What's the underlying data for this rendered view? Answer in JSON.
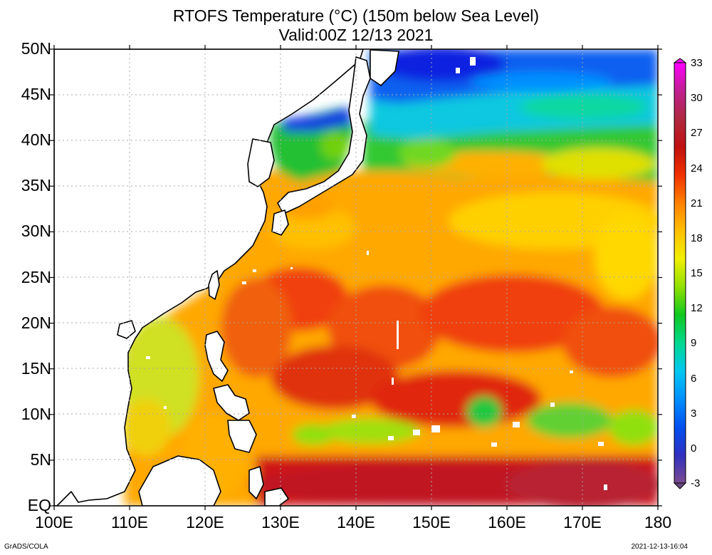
{
  "title": {
    "line1": "RTOFS Temperature (°C) (150m below Sea Level)",
    "line2": "Valid:00Z 12/13 2021"
  },
  "map": {
    "lon_range": [
      100,
      180
    ],
    "lat_range": [
      0,
      50
    ],
    "lat_labels": [
      {
        "lat": 50,
        "text": "50N"
      },
      {
        "lat": 45,
        "text": "45N"
      },
      {
        "lat": 40,
        "text": "40N"
      },
      {
        "lat": 35,
        "text": "35N"
      },
      {
        "lat": 30,
        "text": "30N"
      },
      {
        "lat": 25,
        "text": "25N"
      },
      {
        "lat": 20,
        "text": "20N"
      },
      {
        "lat": 15,
        "text": "15N"
      },
      {
        "lat": 10,
        "text": "10N"
      },
      {
        "lat": 5,
        "text": "5N"
      },
      {
        "lat": 0,
        "text": "EQ"
      }
    ],
    "lon_labels": [
      {
        "lon": 100,
        "text": "100E"
      },
      {
        "lon": 110,
        "text": "110E"
      },
      {
        "lon": 120,
        "text": "120E"
      },
      {
        "lon": 130,
        "text": "130E"
      },
      {
        "lon": 140,
        "text": "140E"
      },
      {
        "lon": 150,
        "text": "150E"
      },
      {
        "lon": 160,
        "text": "160E"
      },
      {
        "lon": 170,
        "text": "170E"
      },
      {
        "lon": 180,
        "text": "180"
      }
    ]
  },
  "colorbar": {
    "ticks": [
      "33",
      "30",
      "27",
      "24",
      "21",
      "18",
      "15",
      "12",
      "9",
      "6",
      "3",
      "0",
      "-3"
    ],
    "range": [
      -3,
      33
    ],
    "colors": [
      "#7a4a90",
      "#3030c0",
      "#0050f0",
      "#0090ff",
      "#00c8f0",
      "#00d890",
      "#10c820",
      "#90e000",
      "#f0f000",
      "#ffc000",
      "#ff8000",
      "#f03000",
      "#c01010",
      "#b02840",
      "#c02090",
      "#ff00ff"
    ]
  },
  "footer": {
    "credit": "GrADS/COLA",
    "timestamp": "2021-12-13-16:04"
  }
}
